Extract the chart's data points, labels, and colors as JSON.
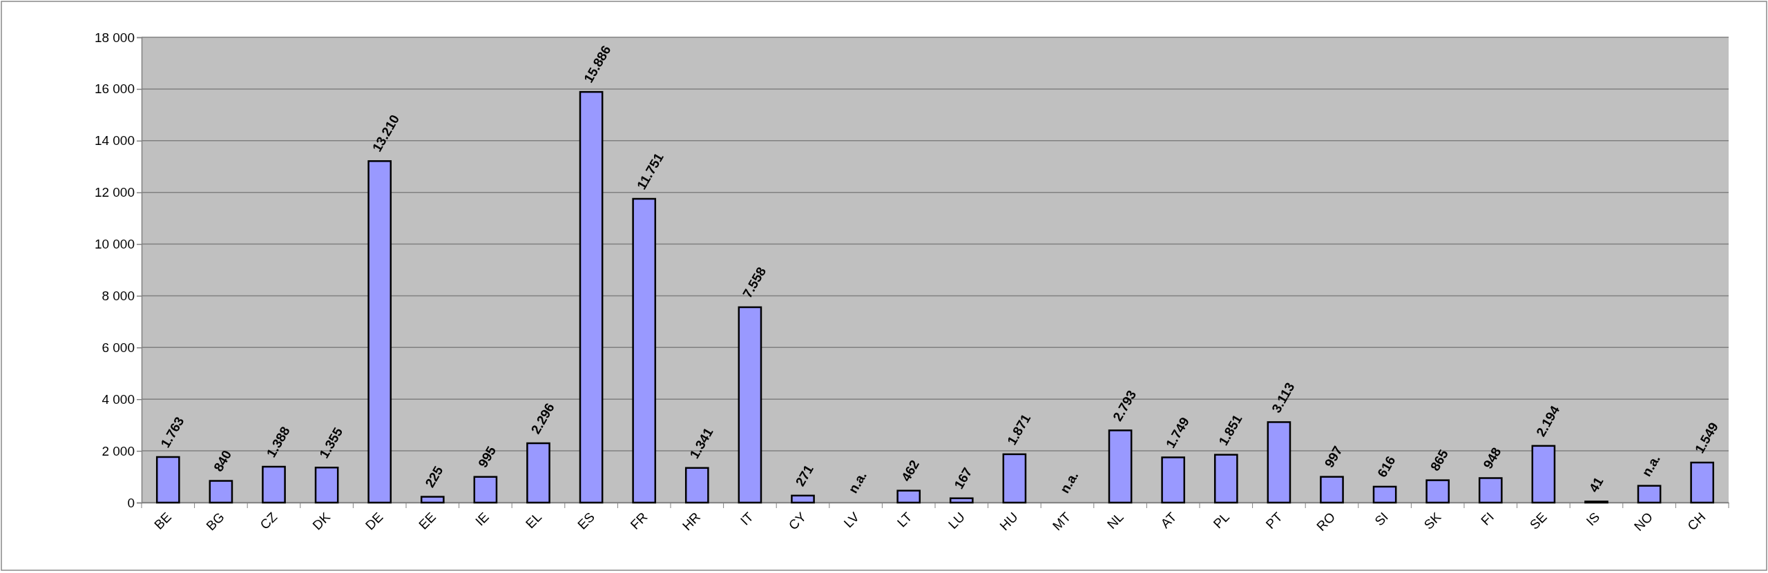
{
  "chart_data": {
    "type": "bar",
    "categories": [
      "BE",
      "BG",
      "CZ",
      "DK",
      "DE",
      "EE",
      "IE",
      "EL",
      "ES",
      "FR",
      "HR",
      "IT",
      "CY",
      "LV",
      "LT",
      "LU",
      "HU",
      "MT",
      "NL",
      "AT",
      "PL",
      "PT",
      "RO",
      "SI",
      "SK",
      "FI",
      "SE",
      "IS",
      "NO",
      "CH"
    ],
    "values": [
      1763,
      840,
      1388,
      1355,
      13210,
      225,
      995,
      2296,
      15886,
      11751,
      1341,
      7558,
      271,
      null,
      462,
      167,
      1871,
      null,
      2793,
      1749,
      1851,
      3113,
      997,
      616,
      865,
      948,
      2194,
      41,
      650,
      1549
    ],
    "value_labels": [
      "1.763",
      "840",
      "1.388",
      "1.355",
      "13.210",
      "225",
      "995",
      "2.296",
      "15.886",
      "11.751",
      "1.341",
      "7.558",
      "271",
      "n.a.",
      "462",
      "167",
      "1.871",
      "n.a.",
      "2.793",
      "1.749",
      "1.851",
      "3.113",
      "997",
      "616",
      "865",
      "948",
      "2.194",
      "41",
      "n.a.",
      "1.549"
    ],
    "color": "#9999ff",
    "ylim": [
      0,
      18000
    ],
    "yticks": [
      {
        "value": 0,
        "label": "0"
      },
      {
        "value": 2000,
        "label": "2 000"
      },
      {
        "value": 4000,
        "label": "4 000"
      },
      {
        "value": 6000,
        "label": "6 000"
      },
      {
        "value": 8000,
        "label": "8 000"
      },
      {
        "value": 10000,
        "label": "10 000"
      },
      {
        "value": 12000,
        "label": "12 000"
      },
      {
        "value": 14000,
        "label": "14 000"
      },
      {
        "value": 16000,
        "label": "16 000"
      },
      {
        "value": 18000,
        "label": "18 000"
      }
    ],
    "grid": "y",
    "legend": false
  }
}
